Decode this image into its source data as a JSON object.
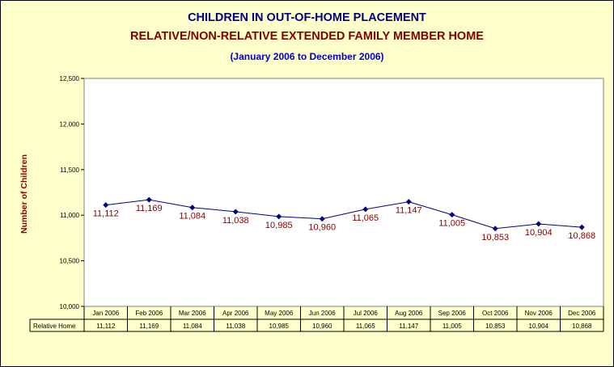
{
  "titles": {
    "line1": "CHILDREN IN OUT-OF-HOME PLACEMENT",
    "line2": "RELATIVE/NON-RELATIVE EXTENDED FAMILY MEMBER HOME",
    "line3": "(January 2006 to December 2006)"
  },
  "chart_data": {
    "type": "line",
    "title": "CHILDREN IN OUT-OF-HOME PLACEMENT",
    "subtitle": "RELATIVE/NON-RELATIVE EXTENDED FAMILY MEMBER HOME",
    "period": "(January 2006 to December 2006)",
    "ylabel": "Number of Children",
    "xlabel": "",
    "ylim": [
      10000,
      12500
    ],
    "yticks": [
      10000,
      10500,
      11000,
      11500,
      12000,
      12500
    ],
    "ytick_labels": [
      "10,000",
      "10,500",
      "11,000",
      "11,500",
      "12,000",
      "12,500"
    ],
    "grid": false,
    "categories": [
      "Jan 2006",
      "Feb 2006",
      "Mar 2006",
      "Apr 2006",
      "May 2006",
      "Jun 2006",
      "Jul 2006",
      "Aug 2006",
      "Sep 2006",
      "Oct 2006",
      "Nov 2006",
      "Dec 2006"
    ],
    "series": [
      {
        "name": "Relative Home",
        "values": [
          11112,
          11169,
          11084,
          11038,
          10985,
          10960,
          11065,
          11147,
          11005,
          10853,
          10904,
          10868
        ],
        "labels": [
          "11,112",
          "11,169",
          "11,084",
          "11,038",
          "10,985",
          "10,960",
          "11,065",
          "11,147",
          "11,005",
          "10,853",
          "10,904",
          "10,868"
        ],
        "color": "#000080"
      }
    ],
    "data_table": true
  },
  "colors": {
    "background": "#ffffcc",
    "plot_background": "#ffffff",
    "line": "#000080",
    "title_navy": "#000080",
    "title_maroon": "#800000",
    "title_blue": "#0000cc",
    "data_label": "#800000"
  }
}
